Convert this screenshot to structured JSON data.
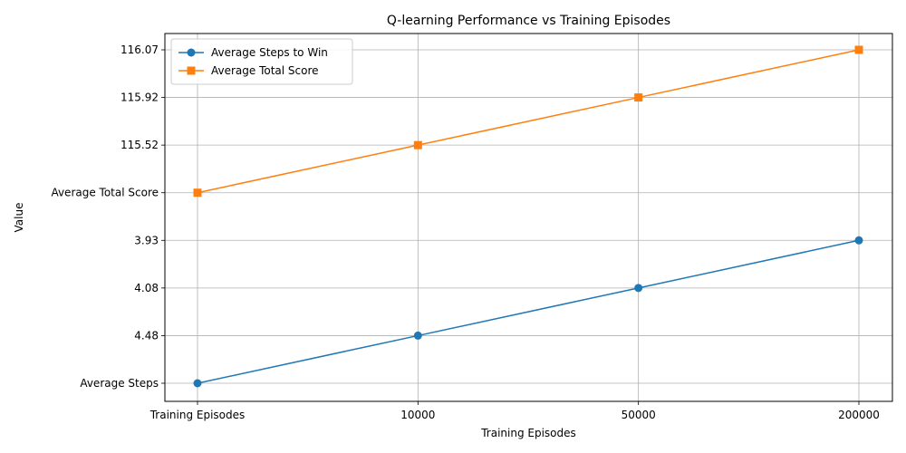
{
  "chart_data": {
    "type": "line",
    "title": "Q-learning Performance vs Training Episodes",
    "xlabel": "Training Episodes",
    "ylabel": "Value",
    "categories": [
      "Training Episodes",
      "10000",
      "50000",
      "200000"
    ],
    "y_ticks": [
      "Average Steps",
      "4.48",
      "4.08",
      "3.93",
      "Average Total Score",
      "115.52",
      "115.92",
      "116.07"
    ],
    "grid": true,
    "legend_position": "top-left",
    "series": [
      {
        "name": "Average Steps to Win",
        "color": "#1f77b4",
        "marker": "circle",
        "values": [
          "Average Steps",
          "4.48",
          "4.08",
          "3.93"
        ]
      },
      {
        "name": "Average Total Score",
        "color": "#ff7f0e",
        "marker": "square",
        "values": [
          "Average Total Score",
          "115.52",
          "115.92",
          "116.07"
        ]
      }
    ]
  }
}
